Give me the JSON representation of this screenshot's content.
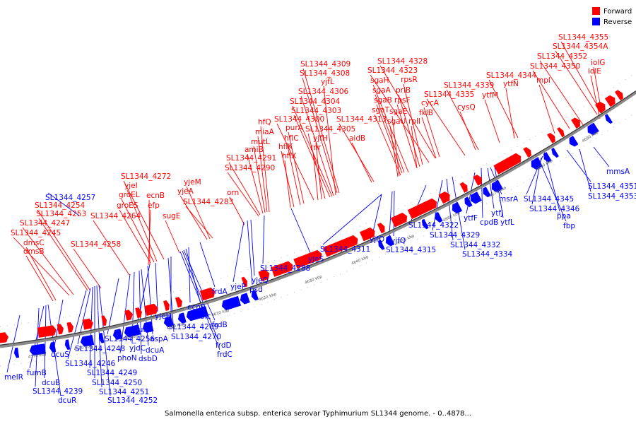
{
  "caption": "Salmonella enterica subsp. enterica serovar Typhimurium SL1344 genome. - 0..4878...",
  "legend": [
    {
      "label": "Forward",
      "color": "#ff0000"
    },
    {
      "label": "Reverse",
      "color": "#0000ff"
    }
  ],
  "colors": {
    "forward": "#ff0000",
    "reverse": "#0000ff",
    "backbone": "#555555"
  },
  "ticks": [
    "4570 kbp",
    "4580 kbp",
    "4590 kbp",
    "4600 kbp",
    "4610 kbp",
    "4620 kbp",
    "4630 kbp",
    "4640 kbp",
    "4650 kbp",
    "4660 kbp",
    "4670 kbp",
    "4680 kbp",
    "4690 kbp"
  ],
  "forward_labels": [
    "SL1344_4355",
    "SL1344_4354A",
    "SL1344_4352",
    "iolG",
    "iolE",
    "SL1344_4350",
    "mpl",
    "SL1344_4344",
    "ytfN",
    "ytfM",
    "SL1344_4339",
    "SL1344_4335",
    "cysQ",
    "SL1344_4328",
    "SL1344_4323",
    "rpsR",
    "priB",
    "rpsF",
    "rplI",
    "sgaH",
    "sgaA",
    "sgaB",
    "sgaT",
    "sgaE",
    "sgaU",
    "cycA",
    "fklB",
    "SL1344_4313",
    "aidB",
    "SL1344_4309",
    "SL1344_4308",
    "yjfL",
    "SL1344_4306",
    "SL1344_4304",
    "SL1344_4303",
    "SL1344_4300",
    "SL1344_4305",
    "yjfH",
    "rnr",
    "purA",
    "hflC",
    "hflX",
    "hflK",
    "hfQ",
    "miaA",
    "mutL",
    "amiB",
    "SL1344_4291",
    "SL1344_4290",
    "orn",
    "SL1344_4283",
    "yjeM",
    "yjeA",
    "sugE",
    "SL1344_4272",
    "yjeI",
    "groEL",
    "groES",
    "ecnB",
    "efp",
    "SL1344_4264",
    "SL1344_4258",
    "SL1344_4254",
    "SL1344_4253",
    "SL1344_4247",
    "SL1344_4245",
    "dmsC",
    "dmsB"
  ],
  "reverse_labels": [
    "SL1344_4257",
    "mmsA",
    "SL1344_4351",
    "SL1344_4353",
    "SL1344_4345",
    "SL1344_4346",
    "ppa",
    "fbp",
    "msrA",
    "ytfL",
    "ytfJ",
    "cpdB",
    "ytfF",
    "SL1344_4322",
    "SL1344_4329",
    "SL1344_4332",
    "SL1344_4334",
    "yjfQ",
    "SL1344_4315",
    "yjfO",
    "SL1344_4311",
    "yjeS",
    "SL1344_4288",
    "yjeQ",
    "psd",
    "yjeP",
    "frdA",
    "ecnR",
    "blc",
    "frdB",
    "frdD",
    "frdC",
    "SL1344_4269",
    "SL1344_4270",
    "yjeH",
    "cutA",
    "aspA",
    "dcuA",
    "dsbD",
    "yjdC",
    "phoN",
    "SL1344_4256",
    "SL1344_4248",
    "SL1344_4246",
    "SL1344_4249",
    "SL1344_4250",
    "SL1344_4251",
    "SL1344_4252",
    "dcuS",
    "fumB",
    "dcuB",
    "SL1344_4239",
    "dcuR",
    "melR"
  ]
}
